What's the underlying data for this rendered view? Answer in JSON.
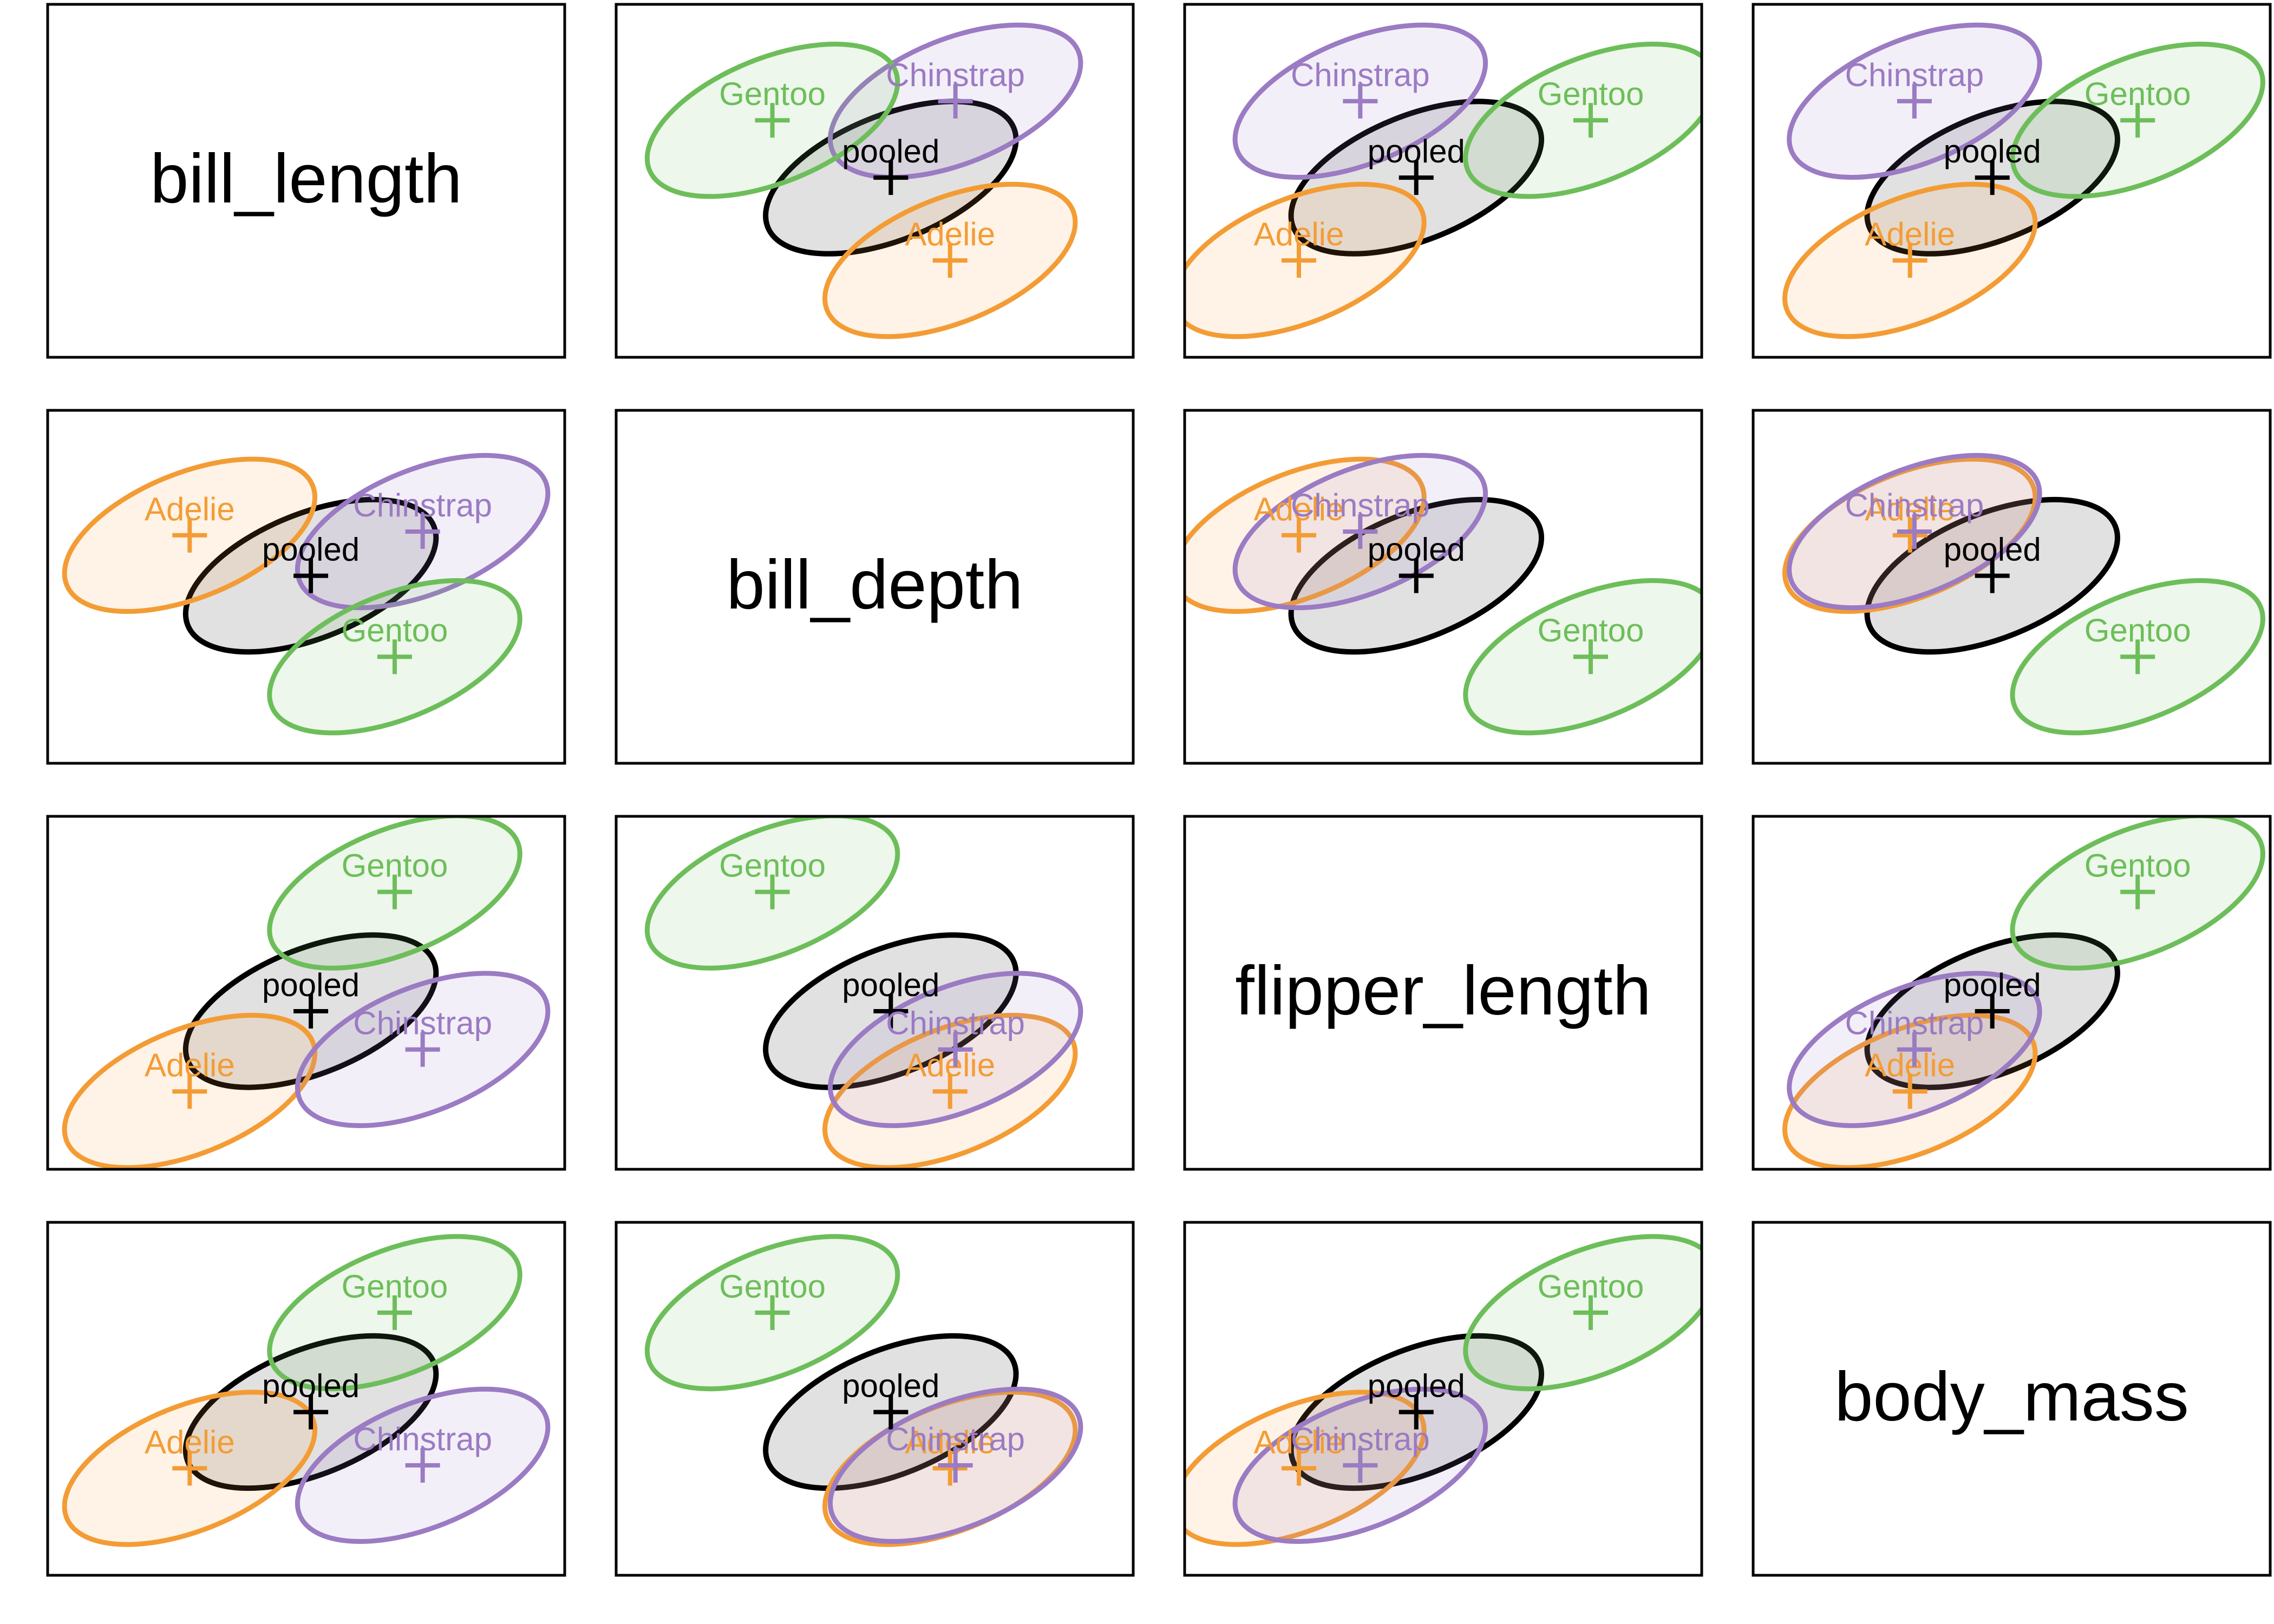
{
  "colors": {
    "Adelie": "#F39C35",
    "Chinstrap": "#9B7BC3",
    "Gentoo": "#6DBE5A",
    "pooled": "#000000",
    "pooled_fill": "#BDBDBD",
    "frame": "#000000"
  },
  "chart_data": {
    "type": "scatter",
    "title": "",
    "variables": [
      "bill_length",
      "bill_depth",
      "flipper_length",
      "body_mass"
    ],
    "groups": [
      "Adelie",
      "Chinstrap",
      "Gentoo"
    ],
    "pooled_label": "pooled",
    "means": {
      "Adelie": [
        38.8,
        18.3,
        190.1,
        3706
      ],
      "Chinstrap": [
        48.8,
        18.4,
        195.8,
        3733
      ],
      "Gentoo": [
        47.6,
        15.0,
        217.2,
        5092
      ],
      "pooled": [
        44.0,
        17.2,
        201.0,
        4207
      ]
    },
    "axis_limits": [
      [
        33.4,
        54.2
      ],
      [
        12.4,
        21.4
      ],
      [
        181.0,
        226.0
      ],
      [
        2850,
        5800
      ]
    ],
    "diagonal_labels": [
      "bill_length",
      "bill_depth",
      "flipper_length",
      "body_mass"
    ]
  }
}
